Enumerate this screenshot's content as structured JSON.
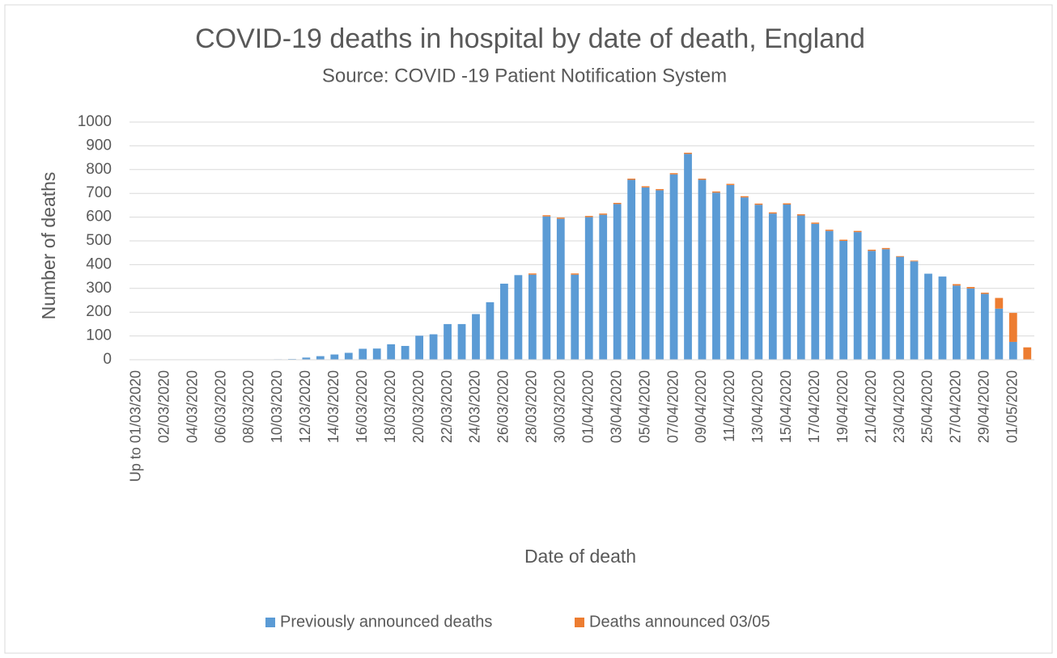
{
  "chart_data": {
    "type": "stacked_bar",
    "title": "COVID-19 deaths in hospital by date of death, England",
    "subtitle": "Source: COVID -19 Patient Notification System",
    "x_label": "Date of death",
    "y_label": "Number of deaths",
    "categories": [
      "Up to  01/03/2020",
      null,
      "02/03/2020",
      null,
      "04/03/2020",
      null,
      "06/03/2020",
      null,
      "08/03/2020",
      null,
      "10/03/2020",
      null,
      "12/03/2020",
      null,
      "14/03/2020",
      null,
      "16/03/2020",
      null,
      "18/03/2020",
      null,
      "20/03/2020",
      null,
      "22/03/2020",
      null,
      "24/03/2020",
      null,
      "26/03/2020",
      null,
      "28/03/2020",
      null,
      "30/03/2020",
      null,
      "01/04/2020",
      null,
      "03/04/2020",
      null,
      "05/04/2020",
      null,
      "07/04/2020",
      null,
      "09/04/2020",
      null,
      "11/04/2020",
      null,
      "13/04/2020",
      null,
      "15/04/2020",
      null,
      "17/04/2020",
      null,
      "19/04/2020",
      null,
      "21/04/2020",
      null,
      "23/04/2020",
      null,
      "25/04/2020",
      null,
      "27/04/2020",
      null,
      "29/04/2020",
      null,
      "01/05/2020",
      null
    ],
    "series": [
      {
        "name": "Previously announced deaths",
        "color": "#5b9bd5",
        "values": [
          0,
          0,
          1,
          0,
          1,
          1,
          1,
          1,
          1,
          1,
          2,
          3,
          9,
          15,
          22,
          29,
          46,
          47,
          65,
          58,
          101,
          107,
          150,
          150,
          192,
          242,
          320,
          356,
          358,
          603,
          593,
          358,
          600,
          610,
          655,
          757,
          725,
          713,
          780,
          866,
          757,
          703,
          735,
          683,
          652,
          615,
          653,
          607,
          572,
          542,
          500,
          537,
          458,
          465,
          433,
          414,
          362,
          350,
          312,
          300,
          277,
          215,
          75,
          0
        ]
      },
      {
        "name": "Deaths announced 03/05",
        "color": "#ed7d31",
        "values": [
          0,
          0,
          0,
          0,
          0,
          0,
          0,
          0,
          0,
          0,
          0,
          0,
          0,
          0,
          0,
          0,
          0,
          0,
          0,
          0,
          0,
          0,
          0,
          0,
          0,
          0,
          0,
          0,
          5,
          5,
          5,
          5,
          5,
          5,
          5,
          5,
          5,
          5,
          5,
          5,
          5,
          5,
          5,
          5,
          5,
          5,
          5,
          5,
          5,
          5,
          5,
          5,
          5,
          5,
          3,
          3,
          0,
          0,
          6,
          6,
          5,
          45,
          122,
          52
        ]
      }
    ],
    "ylim": [
      0,
      1000
    ],
    "yticks": [
      0,
      100,
      200,
      300,
      400,
      500,
      600,
      700,
      800,
      900,
      1000
    ],
    "grid": true,
    "legend": "bottom"
  }
}
